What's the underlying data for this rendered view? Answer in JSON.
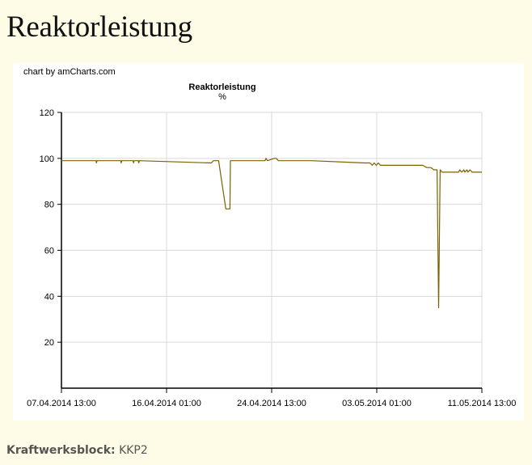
{
  "page": {
    "title": "Reaktorleistung",
    "credit": "chart by amCharts.com",
    "footer_label": "Kraftwerksblock:",
    "footer_value": "KKP2"
  },
  "colors": {
    "line": "#7a6000",
    "grid": "#d9d9d9",
    "axis": "#000000",
    "page_background": "#fefbe6"
  },
  "chart_data": {
    "type": "line",
    "title": "Reaktorleistung",
    "subtitle": "%",
    "xlabel": "",
    "ylabel": "",
    "ylim": [
      0,
      120
    ],
    "xlim": [
      "2014-04-07T13:00",
      "2014-05-11T13:00"
    ],
    "y_ticks": [
      20,
      40,
      60,
      80,
      100,
      120
    ],
    "x_ticks": [
      {
        "value": "2014-04-07T13:00",
        "label": "07.04.2014 13:00"
      },
      {
        "value": "2014-04-16T01:00",
        "label": "16.04.2014 01:00"
      },
      {
        "value": "2014-04-24T13:00",
        "label": "24.04.2014 13:00"
      },
      {
        "value": "2014-05-03T01:00",
        "label": "03.05.2014 01:00"
      },
      {
        "value": "2014-05-11T13:00",
        "label": "11.05.2014 13:00"
      }
    ],
    "grid": true,
    "legend": "none",
    "series": [
      {
        "x": [
          "2014-04-07T13:00",
          "2014-04-10T08:00",
          "2014-04-10T09:00",
          "2014-04-10T10:00",
          "2014-04-12T08:00",
          "2014-04-12T09:00",
          "2014-04-12T10:00",
          "2014-04-13T08:00",
          "2014-04-13T09:00",
          "2014-04-13T10:00",
          "2014-04-13T18:00",
          "2014-04-13T19:00",
          "2014-04-13T20:00",
          "2014-04-19T16:00",
          "2014-04-19T20:00",
          "2014-04-20T06:00",
          "2014-04-20T20:00",
          "2014-04-21T04:00",
          "2014-04-21T05:00",
          "2014-04-21T14:00",
          "2014-04-21T16:00",
          "2014-04-24T00:00",
          "2014-04-24T02:00",
          "2014-04-24T05:00",
          "2014-04-24T18:00",
          "2014-04-24T22:00",
          "2014-04-25T02:00",
          "2014-04-25T06:00",
          "2014-04-27T13:00",
          "2014-04-27T18:00",
          "2014-05-02T02:00",
          "2014-05-02T08:00",
          "2014-05-02T12:00",
          "2014-05-02T16:00",
          "2014-05-02T20:00",
          "2014-05-03T00:00",
          "2014-05-03T04:00",
          "2014-05-03T08:00",
          "2014-05-03T12:00",
          "2014-05-03T16:00",
          "2014-05-06T18:00",
          "2014-05-07T02:00",
          "2014-05-07T10:00",
          "2014-05-07T16:00",
          "2014-05-07T22:00",
          "2014-05-08T01:00",
          "2014-05-08T04:00",
          "2014-05-08T08:00",
          "2014-05-08T11:00",
          "2014-05-08T14:00",
          "2014-05-09T16:00",
          "2014-05-09T18:00",
          "2014-05-09T22:00",
          "2014-05-10T02:00",
          "2014-05-10T04:00",
          "2014-05-10T08:00",
          "2014-05-10T10:00",
          "2014-05-10T14:00",
          "2014-05-10T18:00",
          "2014-05-11T13:00"
        ],
        "values": [
          99,
          99,
          98,
          99,
          99,
          98,
          99,
          99,
          98,
          99,
          99,
          98,
          99,
          98,
          99,
          99,
          78,
          78,
          99,
          99,
          99,
          99,
          100,
          99,
          100,
          100,
          99,
          99,
          99,
          99,
          98,
          98,
          98,
          97,
          98,
          97,
          98,
          97,
          97,
          97,
          97,
          96,
          96,
          95,
          95,
          35,
          95,
          94,
          94,
          94,
          94,
          95,
          94,
          95,
          94,
          95,
          94,
          95,
          94,
          94
        ]
      }
    ]
  }
}
